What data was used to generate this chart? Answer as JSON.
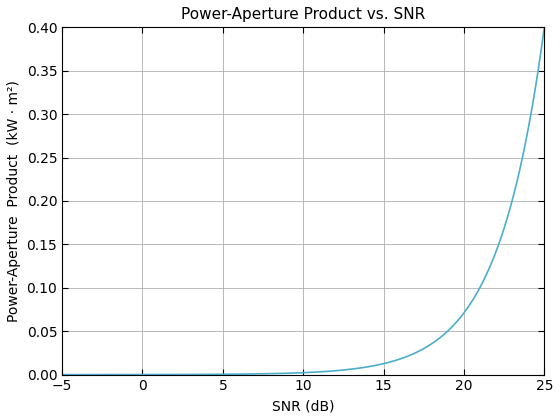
{
  "title": "Power-Aperture Product vs. SNR",
  "xlabel": "SNR (dB)",
  "ylabel": "Power-Aperture  Product  (kW · m²)",
  "xlim": [
    -5,
    25
  ],
  "ylim": [
    0,
    0.4
  ],
  "xticks": [
    -5,
    0,
    5,
    10,
    15,
    20,
    25
  ],
  "yticks": [
    0,
    0.05,
    0.1,
    0.15,
    0.2,
    0.25,
    0.3,
    0.35,
    0.4
  ],
  "line_color": "#4DAECC",
  "snr_min": -5,
  "snr_max": 25,
  "background_color": "#ffffff",
  "grid_color": "#b0b0b0",
  "exponent": 1.5
}
